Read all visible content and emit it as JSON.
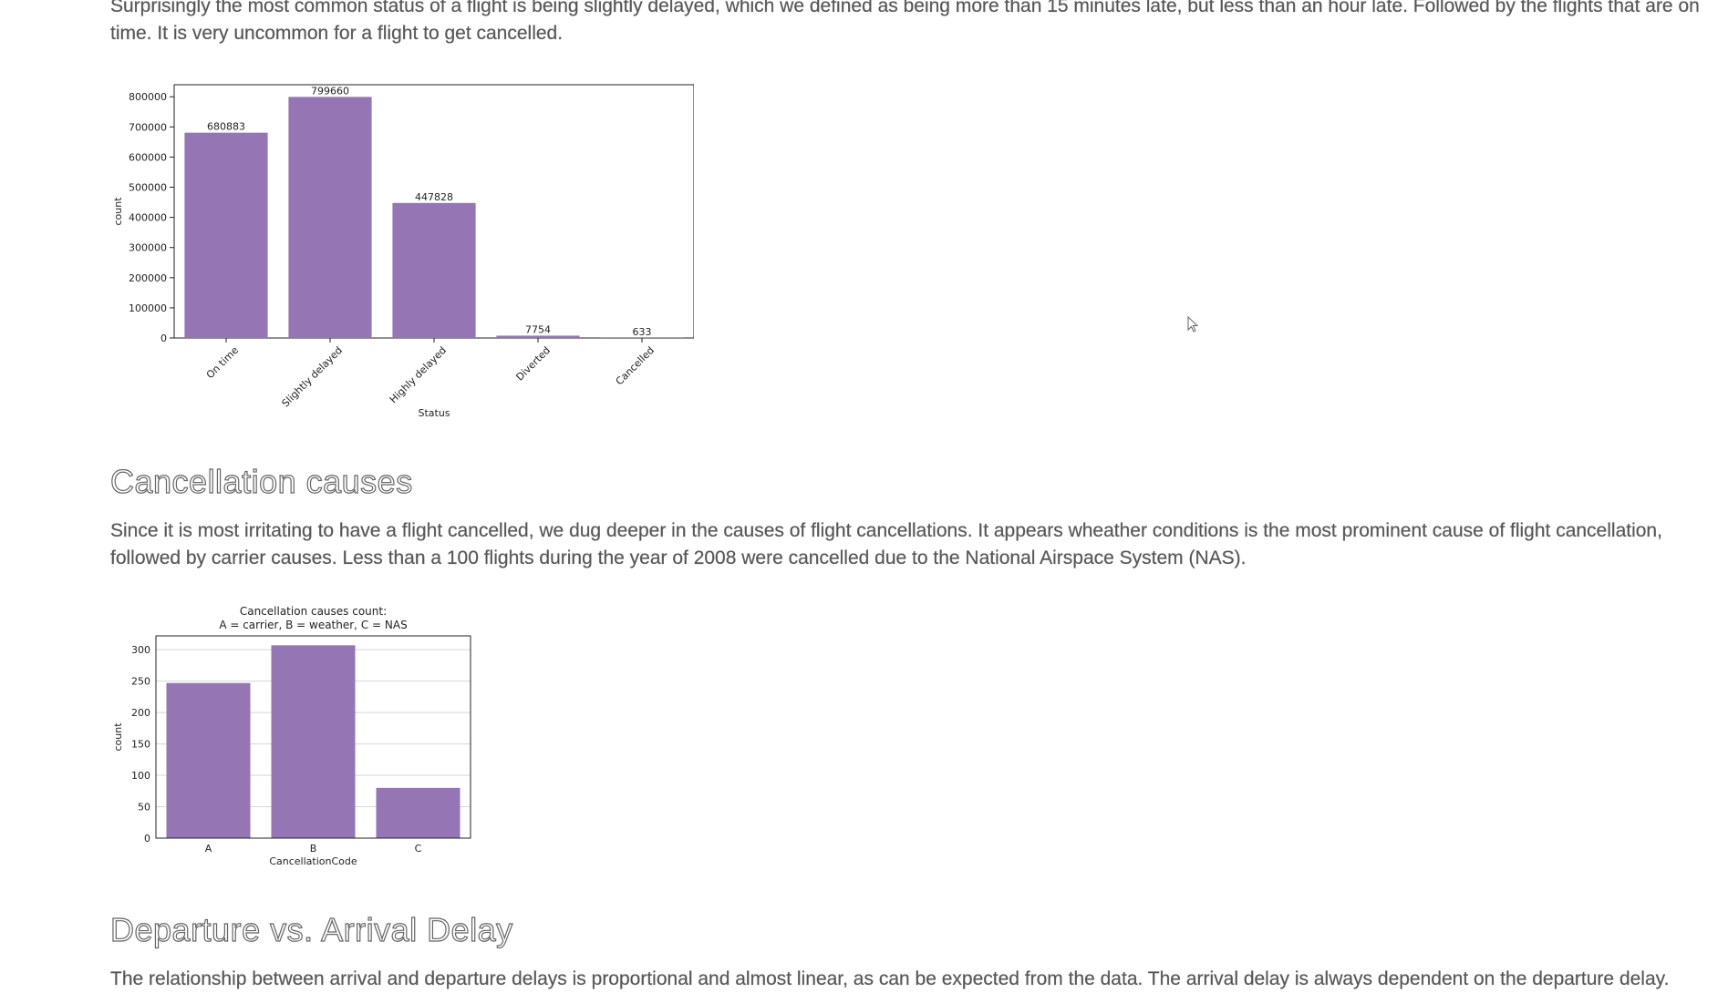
{
  "paragraphs": {
    "status_intro": "Surprisingly the most common status of a flight is being slightly delayed, which we defined as being more than 15 minutes late, but less than an hour late. Followed by the flights that are on time. It is very uncommon for a flight to get cancelled.",
    "cancellation_intro": "Since it is most irritating to have a flight cancelled, we dug deeper in the causes of flight cancellations. It appears wheather conditions is the most prominent cause of flight cancellation, followed by carrier causes. Less than a 100 flights during the year of 2008 were cancelled due to the National Airspace System (NAS).",
    "departure_intro": "The relationship between arrival and departure delays is proportional and almost linear, as can be expected from the data. The arrival delay is always dependent on the departure delay."
  },
  "headings": {
    "cancellation": "Cancellation causes",
    "departure": "Departure vs. Arrival Delay"
  },
  "colors": {
    "bar": "#9575b4",
    "axis": "#222222",
    "grid": "#d6d6d6"
  },
  "cursor_icon": "mouse-pointer-icon",
  "chart_data": [
    {
      "type": "bar",
      "title": "",
      "xlabel": "Status",
      "ylabel": "count",
      "categories": [
        "On time",
        "Slightly delayed",
        "Highly delayed",
        "Diverted",
        "Cancelled"
      ],
      "values": [
        680883,
        799660,
        447828,
        7754,
        633
      ],
      "value_labels": [
        "680883",
        "799660",
        "447828",
        "7754",
        "633"
      ],
      "ylim": [
        0,
        840000
      ],
      "yticks": [
        0,
        100000,
        200000,
        300000,
        400000,
        500000,
        600000,
        700000,
        800000
      ],
      "ytick_labels": [
        "0",
        "100000",
        "200000",
        "300000",
        "400000",
        "500000",
        "600000",
        "700000",
        "800000"
      ],
      "grid": false
    },
    {
      "type": "bar",
      "title": "Cancellation causes count:",
      "subtitle": "A = carrier, B = weather, C = NAS",
      "xlabel": "CancellationCode",
      "ylabel": "count",
      "categories": [
        "A",
        "B",
        "C"
      ],
      "values": [
        247,
        307,
        80
      ],
      "ylim": [
        0,
        322
      ],
      "yticks": [
        0,
        50,
        100,
        150,
        200,
        250,
        300
      ],
      "ytick_labels": [
        "0",
        "50",
        "100",
        "150",
        "200",
        "250",
        "300"
      ],
      "grid": true
    }
  ]
}
